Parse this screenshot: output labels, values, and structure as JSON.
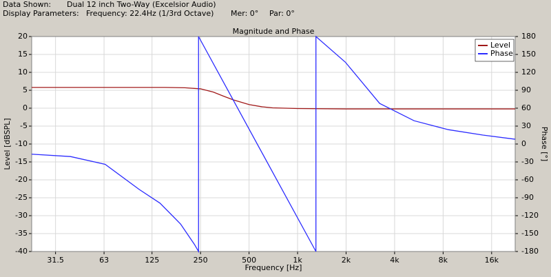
{
  "header": {
    "data_shown_label": "Data Shown:",
    "data_shown": "Dual 12 inch Two-Way (Excelsior Audio)",
    "display_label": "Display Parameters:",
    "frequency": "Frequency: 22.4Hz (1/3rd Octave)",
    "mer": "Mer: 0°",
    "par": "Par: 0°"
  },
  "chart_data": {
    "type": "line",
    "title": "Magnitude and Phase",
    "x_label": "Frequency [Hz]",
    "y_label": "Level [dBSPL]",
    "y2_label": "Phase [°]",
    "log_x": true,
    "grid": true,
    "legend": "top-right",
    "xlim": [
      22.4,
      22400
    ],
    "xticks": [
      31.5,
      63,
      125,
      250,
      500,
      {
        "value": 1000,
        "label": "1k"
      },
      {
        "value": 2000,
        "label": "2k"
      },
      {
        "value": 4000,
        "label": "4k"
      },
      {
        "value": 8000,
        "label": "8k"
      },
      {
        "value": 16000,
        "label": "16k"
      }
    ],
    "ylim": [
      -40,
      20
    ],
    "yticks": [
      20,
      15,
      10,
      5,
      0,
      -5,
      -10,
      -15,
      -20,
      -25,
      -30,
      -35,
      -40
    ],
    "y2lim": [
      -180,
      180
    ],
    "y2ticks": [
      180,
      150,
      120,
      90,
      60,
      30,
      0,
      -30,
      -60,
      -90,
      -120,
      -150,
      -180
    ],
    "series": [
      {
        "name": "Level",
        "color": "#a01818",
        "x": [
          22.4,
          50,
          100,
          150,
          200,
          250,
          300,
          350,
          400,
          500,
          600,
          700,
          1000,
          2000,
          5000,
          22400
        ],
        "values": [
          5.8,
          5.8,
          5.8,
          5.8,
          5.7,
          5.4,
          4.5,
          3.3,
          2.3,
          1.0,
          0.4,
          0.1,
          -0.1,
          -0.2,
          -0.2,
          -0.2
        ]
      },
      {
        "name": "Phase",
        "color": "#2b2bff",
        "axis": "y2",
        "x": [
          22.4,
          39,
          64,
          104,
          140,
          188,
          229,
          243,
          243,
          1300,
          1300,
          1980,
          3230,
          5280,
          8630,
          14100,
          22400
        ],
        "values": [
          -17,
          -21,
          -34,
          -76,
          -99,
          -134,
          -168,
          -180,
          180,
          -180,
          180,
          137,
          68,
          39,
          24,
          15,
          8
        ]
      }
    ]
  }
}
